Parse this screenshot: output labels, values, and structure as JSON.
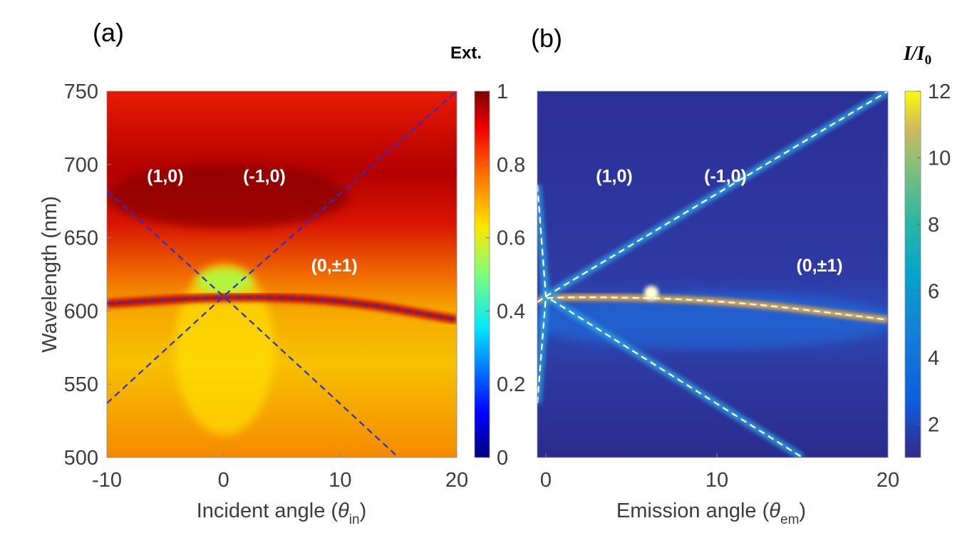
{
  "panels": [
    {
      "label": "(a)",
      "colorbar_title": "Ext.",
      "x_label_main": "Incident angle (",
      "x_label_theta": "θ",
      "x_label_sub": "in",
      "x_label_close": ")",
      "y_label": "Wavelength (nm)"
    },
    {
      "label": "(b)",
      "colorbar_title_main": "I/I",
      "colorbar_title_sub": "0",
      "x_label_main": "Emission angle (",
      "x_label_theta": "θ",
      "x_label_sub": "em",
      "x_label_close": ")"
    }
  ],
  "chart_data": [
    {
      "type": "heatmap",
      "title": "",
      "xlabel": "Incident angle (θin)",
      "ylabel": "Wavelength (nm)",
      "xlim": [
        -10,
        20
      ],
      "ylim": [
        500,
        750
      ],
      "x_ticks": [
        "-10",
        "0",
        "10",
        "20"
      ],
      "y_ticks": [
        "500",
        "550",
        "600",
        "650",
        "700",
        "750"
      ],
      "colorbar": {
        "label": "Ext.",
        "range": [
          0,
          1
        ],
        "ticks": [
          "0",
          "0.2",
          "0.4",
          "0.6",
          "0.8",
          "1"
        ],
        "colormap": "jet"
      },
      "annotations": [
        {
          "text": "(1,0)",
          "x": -5,
          "y": 688
        },
        {
          "text": "(-1,0)",
          "x": 3.5,
          "y": 688
        },
        {
          "text": "(0,±1)",
          "x": 9.5,
          "y": 627
        }
      ],
      "dashed_lines": [
        {
          "name": "(1,0)",
          "points": [
            [
              -10,
              682
            ],
            [
              0,
              610
            ],
            [
              15,
              500
            ]
          ],
          "color": "#2a2fd0"
        },
        {
          "name": "(-1,0)",
          "points": [
            [
              -10,
              537
            ],
            [
              0,
              610
            ],
            [
              20,
              750
            ]
          ],
          "color": "#2a2fd0"
        },
        {
          "name": "(0,±1)",
          "points": [
            [
              -10,
              605
            ],
            [
              0,
              610
            ],
            [
              10,
              608
            ],
            [
              20,
              594
            ]
          ],
          "color": "#2a2fd0"
        }
      ]
    },
    {
      "type": "heatmap",
      "title": "",
      "xlabel": "Emission angle (θem)",
      "ylabel": "",
      "xlim": [
        -0.5,
        20
      ],
      "ylim": [
        500,
        750
      ],
      "x_ticks": [
        "0",
        "10",
        "20"
      ],
      "colorbar": {
        "label": "I/I0",
        "range": [
          1,
          12
        ],
        "ticks": [
          "2",
          "4",
          "6",
          "8",
          "10",
          "12"
        ],
        "colormap": "parula"
      },
      "annotations": [
        {
          "text": "(1,0)",
          "x": 4,
          "y": 688
        },
        {
          "text": "(-1,0)",
          "x": 10.5,
          "y": 688
        },
        {
          "text": "(0,±1)",
          "x": 16,
          "y": 627
        }
      ],
      "dashed_lines": [
        {
          "name": "(1,0)",
          "points": [
            [
              -0.5,
              686
            ],
            [
              0,
              610
            ],
            [
              15,
              500
            ]
          ],
          "color": "#ffffff"
        },
        {
          "name": "(-1,0)",
          "points": [
            [
              -0.5,
              537
            ],
            [
              0,
              610
            ],
            [
              20,
              750
            ]
          ],
          "color": "#ffffff"
        },
        {
          "name": "(0,±1)",
          "points": [
            [
              -0.5,
              606
            ],
            [
              0,
              610
            ],
            [
              10,
              608
            ],
            [
              20,
              594
            ]
          ],
          "color": "#ffffff"
        }
      ]
    }
  ]
}
